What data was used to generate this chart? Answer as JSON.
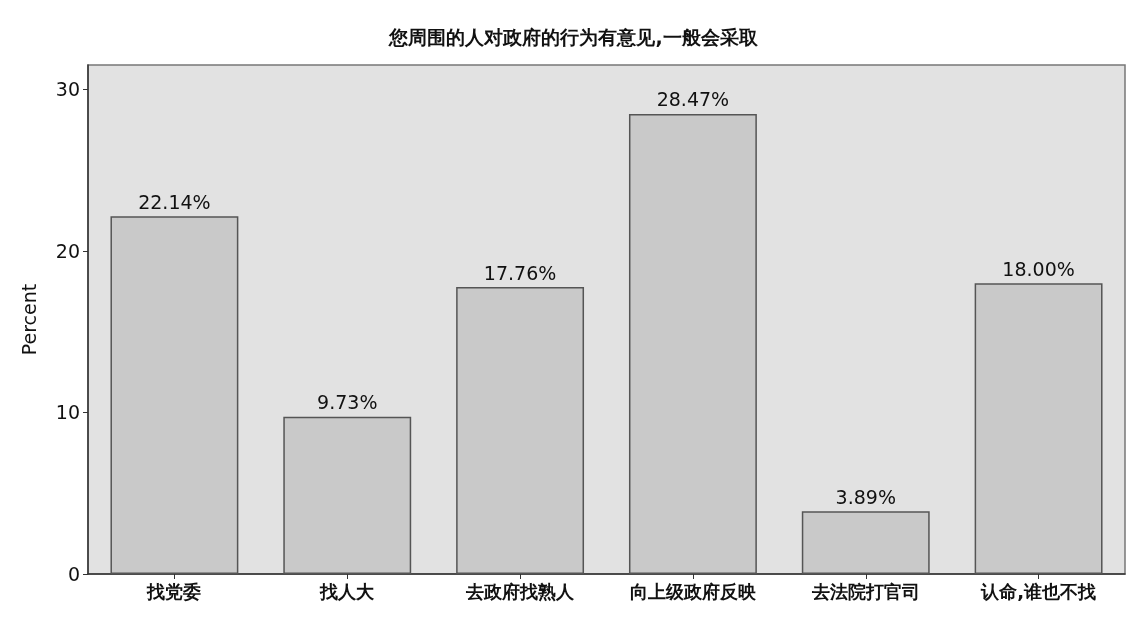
{
  "chart_data": {
    "type": "bar",
    "title": "您周围的人对政府的行为有意见,一般会采取",
    "ylabel": "Percent",
    "categories": [
      "找党委",
      "找人大",
      "去政府找熟人",
      "向上级政府反映",
      "去法院打官司",
      "认命,谁也不找"
    ],
    "values": [
      22.14,
      9.73,
      17.76,
      28.47,
      3.89,
      18.0
    ],
    "value_labels": [
      "22.14%",
      "9.73%",
      "17.76%",
      "28.47%",
      "3.89%",
      "18.00%"
    ],
    "color": "#c9c9c9",
    "ylim": [
      0,
      31.5
    ],
    "yticks": [
      0,
      10,
      20,
      30
    ],
    "grid": false
  }
}
